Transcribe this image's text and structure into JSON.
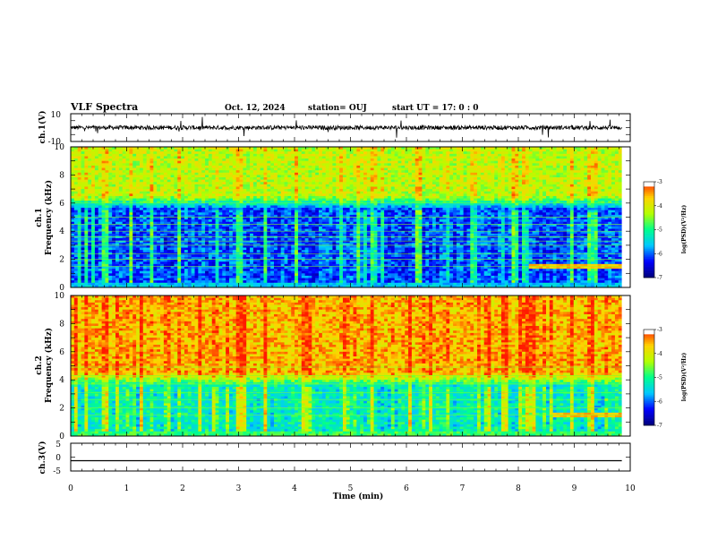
{
  "header": {
    "title": "VLF Spectra",
    "date": "Oct. 12, 2024",
    "station": "station= OUJ",
    "start": "start  UT  =   17: 0  : 0"
  },
  "colors": {
    "trace": "#000000",
    "colormap": [
      "#00007a",
      "#0000ff",
      "#00c8ff",
      "#00ff8c",
      "#b4ff00",
      "#ffd200",
      "#ff1a00",
      "#ffffff"
    ]
  },
  "chart_data": [
    {
      "type": "line",
      "panel": "ch1-waveform",
      "ylabel": "ch.1(V)",
      "ylim": [
        -10,
        10
      ],
      "yticks": [
        "10",
        "-10"
      ],
      "xlim": [
        0,
        10
      ],
      "trace_extent_min": [
        0,
        9.85
      ],
      "trace_baseline_v": 0,
      "trace_noise_v": 1.5
    },
    {
      "type": "heatmap",
      "panel": "ch1-spectrogram",
      "ylabel_line1": "ch.1",
      "ylabel_line2": "Frequency  (kHz)",
      "xlim": [
        0,
        10
      ],
      "ylim": [
        0,
        10
      ],
      "yticks": [
        "0",
        "2",
        "4",
        "6",
        "8",
        "10"
      ],
      "data_extent_min": [
        0,
        9.85
      ],
      "colorbar": {
        "label": "log(PSD)(V²/Hz)",
        "range": [
          -7,
          -3
        ],
        "ticks": [
          "-3",
          "-4",
          "-5",
          "-6",
          "-7"
        ]
      },
      "features": {
        "high_band_psd": -4.3,
        "low_band_psd": -6.3,
        "low_band_top_khz": 5.5,
        "signal_lines_khz": [
          1.5,
          2.0,
          2.4,
          3.0,
          3.3,
          3.6,
          4.0,
          4.5,
          5.0,
          6.0
        ],
        "late_event_start_min": 8.2,
        "late_event_khz": 1.5
      }
    },
    {
      "type": "heatmap",
      "panel": "ch2-spectrogram",
      "ylabel_line1": "ch.2",
      "ylabel_line2": "Frequency  (kHz)",
      "xlim": [
        0,
        10
      ],
      "ylim": [
        0,
        10
      ],
      "yticks": [
        "0",
        "2",
        "4",
        "6",
        "8",
        "10"
      ],
      "data_extent_min": [
        0,
        9.85
      ],
      "colorbar": {
        "label": "log(PSD)(V²/Hz)",
        "range": [
          -7,
          -3
        ],
        "ticks": [
          "-3",
          "-4",
          "-5",
          "-6",
          "-7"
        ]
      },
      "features": {
        "high_band_psd": -3.7,
        "low_band_psd": -5.5,
        "low_band_top_khz": 3.5,
        "signal_lines_khz": [
          1.5,
          2.0,
          2.6,
          3.1,
          3.7,
          4.3,
          4.9
        ],
        "late_event_start_min": 8.6,
        "late_event_khz": 1.5
      }
    },
    {
      "type": "line",
      "panel": "ch3-waveform",
      "ylabel": "ch.3(V)",
      "ylim": [
        -5,
        5
      ],
      "yticks": [
        "5",
        "0",
        "-5"
      ],
      "xlim": [
        0,
        10
      ],
      "trace_extent_min": [
        0,
        9.85
      ],
      "trace_baseline_v": -1.3,
      "trace_noise_v": 0
    }
  ],
  "time_axis": {
    "label": "Time  (min)",
    "ticks": [
      "0",
      "1",
      "2",
      "3",
      "4",
      "5",
      "6",
      "7",
      "8",
      "9",
      "10"
    ]
  }
}
